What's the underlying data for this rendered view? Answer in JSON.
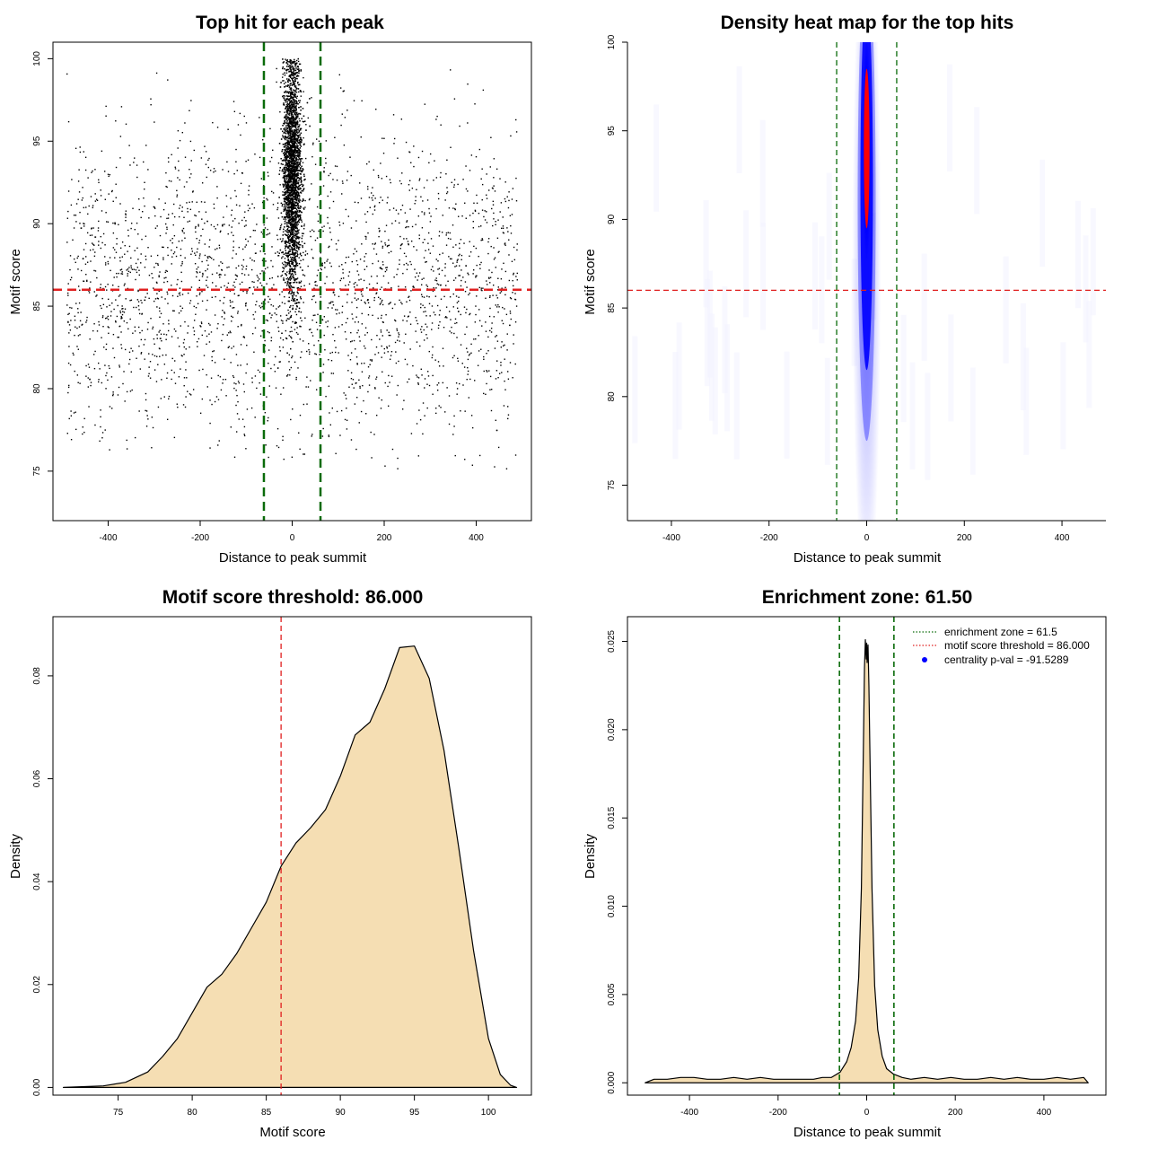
{
  "colors": {
    "points": "#000000",
    "threshold_line": "#e02020",
    "zone_line": "#0a6b0a",
    "density_fill": "#f5deb3",
    "heat_low": "#f4f4ff",
    "heat_mid": "#0000ff",
    "heat_high": "#ff0000"
  },
  "chart_data": [
    {
      "id": "scatter",
      "type": "scatter",
      "title": "Top hit for each peak",
      "xlabel": "Distance to peak summit",
      "ylabel": "Motif score",
      "xlim": [
        -520,
        520
      ],
      "ylim": [
        72,
        101
      ],
      "xticks": [
        -400,
        -200,
        0,
        200,
        400
      ],
      "yticks": [
        75,
        80,
        85,
        90,
        95,
        100
      ],
      "hline": 86,
      "vlines": [
        -61.5,
        61.5
      ],
      "points_description": {
        "background_x_range": [
          -490,
          490
        ],
        "background_y_range": [
          75,
          99.5
        ],
        "central_x_sd": 10,
        "central_y_range": [
          78,
          100
        ]
      }
    },
    {
      "id": "heatmap",
      "type": "heatmap",
      "title": "Density heat map for the top hits",
      "xlabel": "Distance to peak summit",
      "ylabel": "Motif score",
      "xlim": [
        -490,
        490
      ],
      "ylim": [
        73,
        100
      ],
      "xticks": [
        -400,
        -200,
        0,
        200,
        400
      ],
      "yticks": [
        75,
        80,
        85,
        90,
        95,
        100
      ],
      "hline": 86,
      "vlines": [
        -61.5,
        61.5
      ],
      "hotspot": {
        "x": 0,
        "y": 94
      }
    },
    {
      "id": "score_density",
      "type": "area",
      "title": "Motif score threshold: 86.000",
      "xlabel": "Motif score",
      "ylabel": "Density",
      "xlim": [
        70.6,
        102.9
      ],
      "ylim": [
        -0.0015,
        0.0915
      ],
      "xticks": [
        75,
        80,
        85,
        90,
        95,
        100
      ],
      "yticks": [
        0.0,
        0.02,
        0.04,
        0.06,
        0.08
      ],
      "ytick_labels": [
        "0.00",
        "0.02",
        "0.04",
        "0.06",
        "0.08"
      ],
      "vline": 86,
      "x": [
        71.3,
        74,
        75.5,
        77,
        78,
        79,
        80,
        81,
        82,
        83,
        84,
        85,
        86,
        87,
        88,
        89,
        90,
        91,
        92,
        93,
        94,
        95,
        96,
        97,
        98,
        99,
        100,
        100.8,
        101.5,
        101.9
      ],
      "y": [
        0,
        0.0003,
        0.001,
        0.003,
        0.006,
        0.0095,
        0.0145,
        0.0195,
        0.022,
        0.026,
        0.031,
        0.036,
        0.043,
        0.0475,
        0.0505,
        0.054,
        0.0605,
        0.0685,
        0.071,
        0.0775,
        0.0855,
        0.0858,
        0.0795,
        0.0655,
        0.0465,
        0.0265,
        0.0095,
        0.0025,
        0.0004,
        0
      ]
    },
    {
      "id": "distance_density",
      "type": "area",
      "title": "Enrichment zone: 61.50",
      "xlabel": "Distance to peak summit",
      "ylabel": "Density",
      "xlim": [
        -540,
        540
      ],
      "ylim": [
        -0.0007,
        0.0264
      ],
      "xticks": [
        -400,
        -200,
        0,
        200,
        400
      ],
      "yticks": [
        0.0,
        0.005,
        0.01,
        0.015,
        0.02,
        0.025
      ],
      "ytick_labels": [
        "0.000",
        "0.005",
        "0.010",
        "0.015",
        "0.020",
        "0.025"
      ],
      "vlines": [
        -61.5,
        61.5
      ],
      "x": [
        -500,
        -480,
        -450,
        -420,
        -390,
        -360,
        -330,
        -300,
        -270,
        -240,
        -210,
        -180,
        -150,
        -120,
        -100,
        -80,
        -60,
        -45,
        -35,
        -25,
        -18,
        -12,
        -8,
        -5,
        -3,
        -1,
        0,
        1,
        3,
        5,
        8,
        12,
        18,
        25,
        35,
        45,
        60,
        80,
        100,
        130,
        160,
        190,
        220,
        250,
        280,
        310,
        340,
        370,
        400,
        430,
        460,
        490,
        500
      ],
      "y": [
        0,
        0.0002,
        0.0002,
        0.0003,
        0.0003,
        0.0002,
        0.0002,
        0.0003,
        0.0002,
        0.0003,
        0.0002,
        0.0002,
        0.0002,
        0.0002,
        0.0003,
        0.0003,
        0.0006,
        0.0012,
        0.002,
        0.0035,
        0.006,
        0.011,
        0.018,
        0.0235,
        0.0251,
        0.024,
        0.0249,
        0.0238,
        0.0248,
        0.0225,
        0.0175,
        0.011,
        0.0055,
        0.003,
        0.0015,
        0.0008,
        0.0005,
        0.0003,
        0.0002,
        0.0003,
        0.0002,
        0.0003,
        0.0002,
        0.0002,
        0.0003,
        0.0002,
        0.0003,
        0.0002,
        0.0002,
        0.0003,
        0.0002,
        0.0003,
        0
      ],
      "legend": {
        "position": "top-right",
        "entries": [
          {
            "label": "enrichment zone = 61.5",
            "style": "dotted",
            "color": "#0a6b0a"
          },
          {
            "label": "motif score threshold = 86.000",
            "style": "dotted",
            "color": "#e02020"
          },
          {
            "label": "centrality p-val = -91.5289",
            "style": "dot",
            "color": "#0000ff"
          }
        ]
      }
    }
  ]
}
